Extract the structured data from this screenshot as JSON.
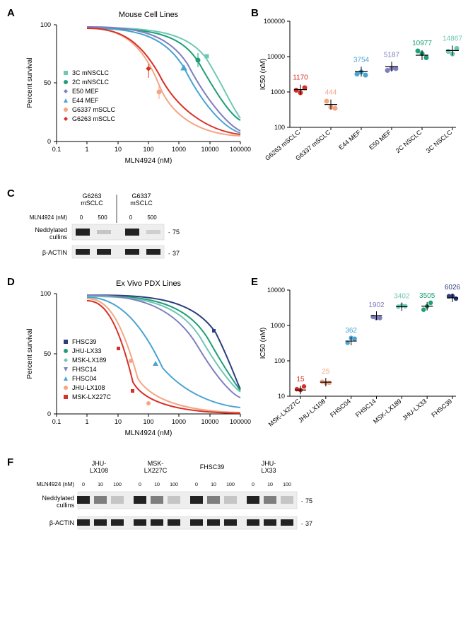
{
  "panelA": {
    "label": "A",
    "title": "Mouse Cell Lines",
    "xlabel": "MLN4924 (nM)",
    "ylabel": "Percent survival",
    "xticks": [
      0.1,
      1,
      10,
      100,
      1000,
      10000,
      100000
    ],
    "yticks": [
      0,
      50,
      100
    ],
    "legend": [
      {
        "name": "3C mNSCLC",
        "color": "#6fc7b4",
        "marker": "square"
      },
      {
        "name": "2C mNSCLC",
        "color": "#1f9e77",
        "marker": "circle"
      },
      {
        "name": "E50 MEF",
        "color": "#7f7ebf",
        "marker": "diamond"
      },
      {
        "name": "E44 MEF",
        "color": "#4aa3d1",
        "marker": "triangle"
      },
      {
        "name": "G6337 mSCLC",
        "color": "#f4a582",
        "marker": "circle"
      },
      {
        "name": "G6263 mSCLC",
        "color": "#d73027",
        "marker": "diamond"
      }
    ]
  },
  "panelB": {
    "label": "B",
    "ylabel": "IC50 (nM)",
    "yticks": [
      100,
      1000,
      10000,
      100000
    ],
    "categories": [
      {
        "name": "G6263 mSCLC",
        "value": 1170,
        "color": "#d73027"
      },
      {
        "name": "G6337 mSCLC",
        "value": 444,
        "color": "#f4a582"
      },
      {
        "name": "E44 MEF",
        "value": 3754,
        "color": "#4aa3d1"
      },
      {
        "name": "E50 MEF",
        "value": 5187,
        "color": "#7f7ebf"
      },
      {
        "name": "2C NSCLC",
        "value": 10977,
        "color": "#1f9e77"
      },
      {
        "name": "3C NSCLC",
        "value": 14867,
        "color": "#6fc7b4"
      }
    ]
  },
  "panelC": {
    "label": "C",
    "groups": [
      "G6263\nmSCLC",
      "G6337\nmSCLC"
    ],
    "doseLabel": "MLN4924 (nM)",
    "doses": [
      "0",
      "500",
      "0",
      "500"
    ],
    "rows": [
      "Neddylated\ncullins",
      "β-ACTIN"
    ],
    "markers": [
      "75",
      "37"
    ]
  },
  "panelD": {
    "label": "D",
    "title": "Ex Vivo PDX Lines",
    "xlabel": "MLN4924 (nM)",
    "ylabel": "Percent survival",
    "xticks": [
      0.1,
      1,
      10,
      100,
      1000,
      10000,
      100000
    ],
    "yticks": [
      0,
      50,
      100
    ],
    "legend": [
      {
        "name": "FHSC39",
        "color": "#2c3e7f",
        "marker": "square"
      },
      {
        "name": "JHU-LX33",
        "color": "#1f9e77",
        "marker": "circle"
      },
      {
        "name": "MSK-LX189",
        "color": "#6fc7b4",
        "marker": "diamond"
      },
      {
        "name": "FHSC14",
        "color": "#7f7ebf",
        "marker": "vtriangle"
      },
      {
        "name": "FHSC04",
        "color": "#4aa3d1",
        "marker": "triangle"
      },
      {
        "name": "JHU-LX108",
        "color": "#f4a582",
        "marker": "circle"
      },
      {
        "name": "MSK-LX227C",
        "color": "#d73027",
        "marker": "square"
      }
    ]
  },
  "panelE": {
    "label": "E",
    "ylabel": "IC50 (nM)",
    "yticks": [
      10,
      100,
      1000,
      10000
    ],
    "categories": [
      {
        "name": "MSK-LX227C",
        "value": 15,
        "color": "#d73027"
      },
      {
        "name": "JHU-LX108",
        "value": 25,
        "color": "#f4a582"
      },
      {
        "name": "FHSC04",
        "value": 362,
        "color": "#4aa3d1"
      },
      {
        "name": "FHSC14",
        "value": 1902,
        "color": "#7f7ebf"
      },
      {
        "name": "MSK-LX189",
        "value": 3402,
        "color": "#6fc7b4"
      },
      {
        "name": "JHU-LX33",
        "value": 3505,
        "color": "#1f9e77"
      },
      {
        "name": "FHSC39",
        "value": 6026,
        "color": "#2c3e7f"
      }
    ]
  },
  "panelF": {
    "label": "F",
    "groups": [
      "JHU-\nLX108",
      "MSK-\nLX227C",
      "FHSC39",
      "JHU-\nLX33"
    ],
    "doseLabel": "MLN4924 (nM)",
    "doses": [
      "0",
      "10",
      "100",
      "0",
      "10",
      "100",
      "0",
      "10",
      "100",
      "0",
      "10",
      "100"
    ],
    "rows": [
      "Neddylated\ncullins",
      "β-ACTIN"
    ],
    "markers": [
      "75",
      "37"
    ]
  }
}
